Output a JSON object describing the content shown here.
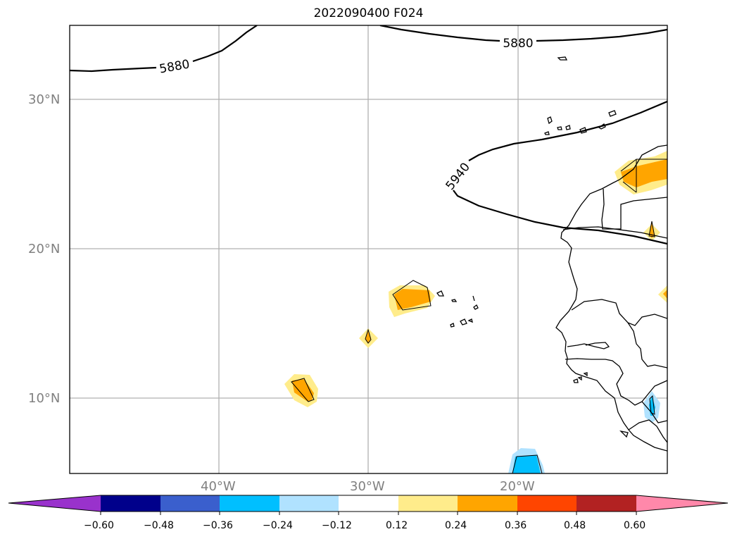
{
  "title": "2022090400 F024",
  "lat_labels": [
    "30°N",
    "20°N",
    "10°N"
  ],
  "lon_labels": [
    "40°W",
    "30°W",
    "20°W"
  ],
  "contours": [
    {
      "value": "5880",
      "label_text": "5880"
    },
    {
      "value": "5880",
      "label_text": "5880"
    },
    {
      "value": "5940",
      "label_text": "5940"
    }
  ],
  "colorbar": {
    "ticks": [
      "−0.60",
      "−0.48",
      "−0.36",
      "−0.24",
      "−0.12",
      "0.12",
      "0.24",
      "0.36",
      "0.48",
      "0.60"
    ],
    "colors": [
      "#9932CC",
      "#00008B",
      "#3A5FCD",
      "#00BFFF",
      "#B0E2FF",
      "#FFFFFF",
      "#FFEC8B",
      "#FFA500",
      "#FF4500",
      "#B22222",
      "#FF88AA"
    ]
  }
}
